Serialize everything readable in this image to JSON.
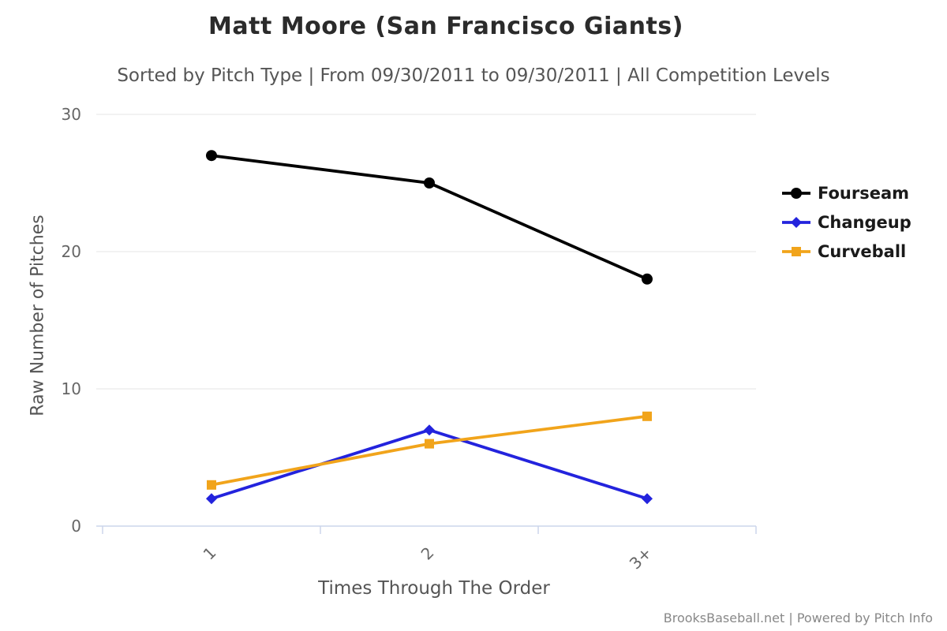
{
  "header": {
    "title": "Matt Moore (San Francisco Giants)",
    "subtitle": "Sorted by Pitch Type | From 09/30/2011 to 09/30/2011 | All Competition Levels"
  },
  "chart_data": {
    "type": "line",
    "title": "Matt Moore (San Francisco Giants)",
    "subtitle": "Sorted by Pitch Type | From 09/30/2011 to 09/30/2011 | All Competition Levels",
    "categories": [
      "1",
      "2",
      "3+"
    ],
    "series": [
      {
        "name": "Fourseam",
        "color": "#000000",
        "marker": "circle",
        "values": [
          27,
          25,
          18
        ]
      },
      {
        "name": "Changeup",
        "color": "#2323dd",
        "marker": "diamond",
        "values": [
          2,
          7,
          2
        ]
      },
      {
        "name": "Curveball",
        "color": "#f1a41b",
        "marker": "square",
        "values": [
          3,
          6,
          8
        ]
      }
    ],
    "xlabel": "Times Through The Order",
    "ylabel": "Raw Number of Pitches",
    "ylim": [
      0,
      30
    ],
    "yticks": [
      0,
      10,
      20,
      30
    ],
    "grid": "horizontal",
    "legend_position": "right"
  },
  "footer": {
    "credit": "BrooksBaseball.net | Powered by Pitch Info"
  }
}
